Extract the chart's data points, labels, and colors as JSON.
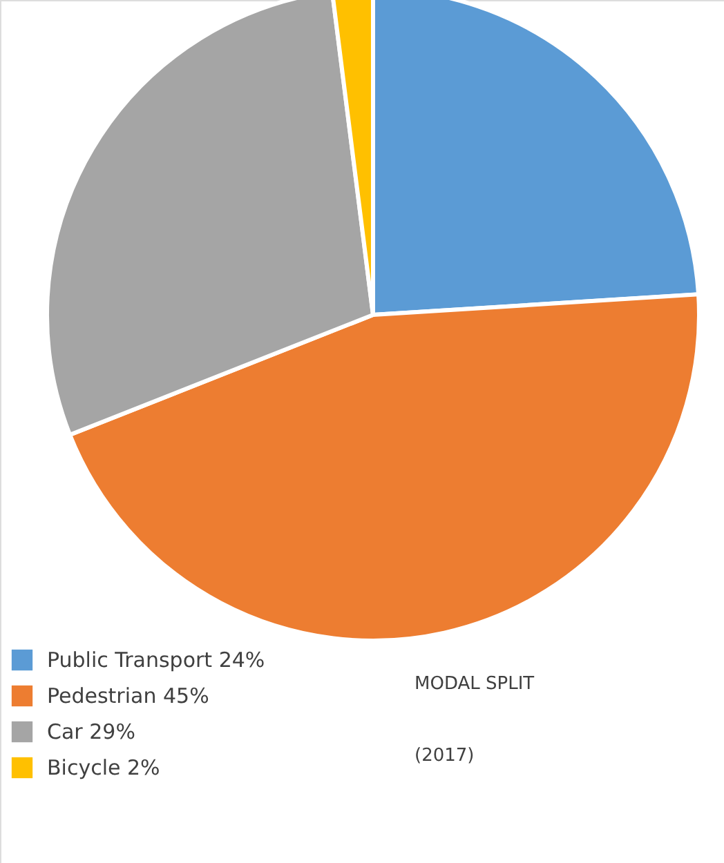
{
  "chart_data": {
    "type": "pie",
    "categories": [
      "Public Transport",
      "Pedestrian",
      "Car",
      "Bicycle"
    ],
    "values": [
      24,
      45,
      29,
      2
    ],
    "value_labels": [
      "24%",
      "45%",
      "29%",
      "2%"
    ],
    "colors": [
      "#5b9bd5",
      "#ed7d31",
      "#a5a5a5",
      "#ffc000"
    ],
    "legend": "bottom left",
    "annotations": [
      "MODAL SPLIT",
      "(2017)"
    ]
  }
}
